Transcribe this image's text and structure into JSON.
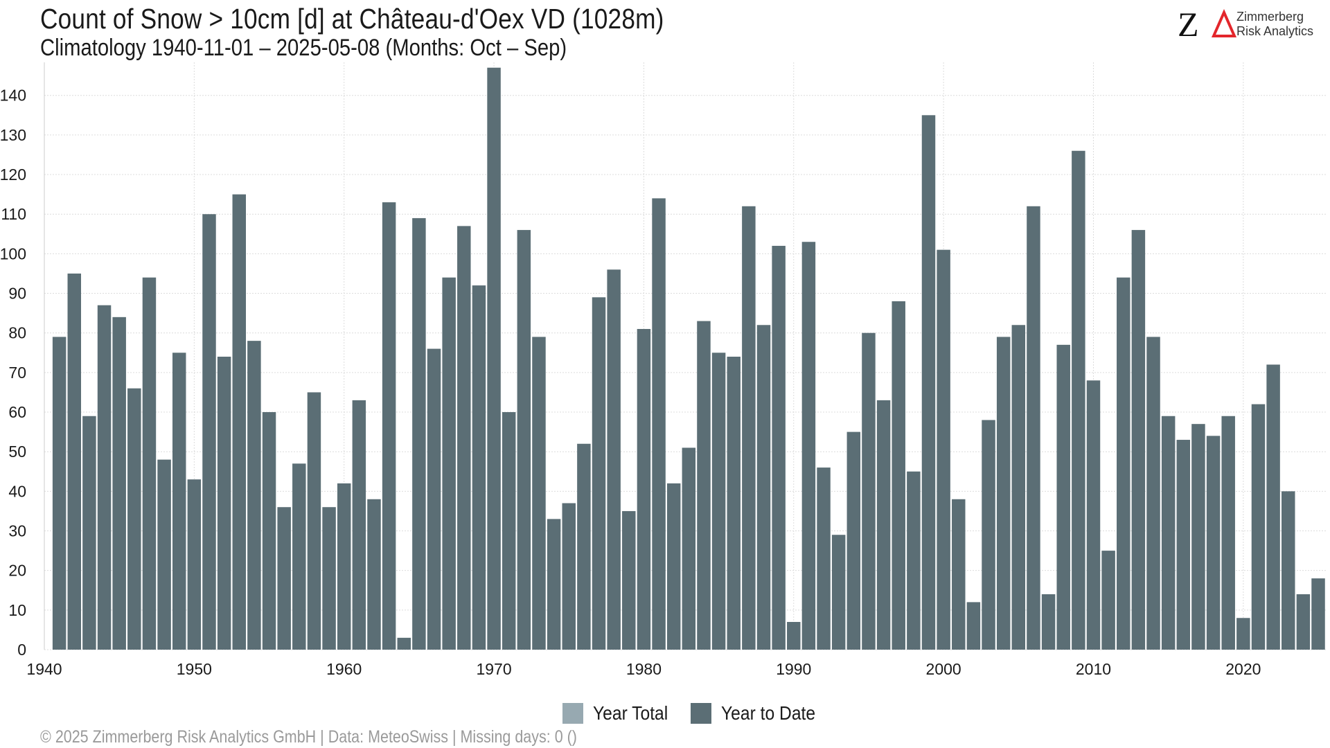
{
  "title": "Count of Snow > 10cm [d] at Château-d'Oex  VD (1028m)",
  "subtitle": "Climatology 1940-11-01 – 2025-05-08 (Months: Oct – Sep)",
  "logo": {
    "letters": "ZΔ",
    "line1": "Zimmerberg",
    "line2": "Risk Analytics",
    "accent_color": "#e3262b"
  },
  "footer": "©  2025 Zimmerberg Risk Analytics GmbH | Data: MeteoSwiss | Missing days: 0 ()",
  "legend": [
    {
      "label": "Year Total",
      "color": "#97a9b1"
    },
    {
      "label": "Year to Date",
      "color": "#5b6e75"
    }
  ],
  "chart_data": {
    "type": "bar",
    "bar_color": "#5b6e75",
    "grid": true,
    "legend_position": "bottom",
    "xlim": [
      1940,
      2025.6
    ],
    "ylim": [
      0,
      148
    ],
    "x_ticks": [
      1940,
      1950,
      1960,
      1970,
      1980,
      1990,
      2000,
      2010,
      2020
    ],
    "y_ticks": [
      0,
      10,
      20,
      30,
      40,
      50,
      60,
      70,
      80,
      90,
      100,
      110,
      120,
      130,
      140
    ],
    "x": [
      1941,
      1942,
      1943,
      1944,
      1945,
      1946,
      1947,
      1948,
      1949,
      1950,
      1951,
      1952,
      1953,
      1954,
      1955,
      1956,
      1957,
      1958,
      1959,
      1960,
      1961,
      1962,
      1963,
      1964,
      1965,
      1966,
      1967,
      1968,
      1969,
      1970,
      1971,
      1972,
      1973,
      1974,
      1975,
      1976,
      1977,
      1978,
      1979,
      1980,
      1981,
      1982,
      1983,
      1984,
      1985,
      1986,
      1987,
      1988,
      1989,
      1990,
      1991,
      1992,
      1993,
      1994,
      1995,
      1996,
      1997,
      1998,
      1999,
      2000,
      2001,
      2002,
      2003,
      2004,
      2005,
      2006,
      2007,
      2008,
      2009,
      2010,
      2011,
      2012,
      2013,
      2014,
      2015,
      2016,
      2017,
      2018,
      2019,
      2020,
      2021,
      2022,
      2023,
      2024,
      2025
    ],
    "series": [
      {
        "name": "Year to Date",
        "values": [
          79,
          95,
          59,
          87,
          84,
          66,
          94,
          48,
          75,
          43,
          110,
          74,
          115,
          78,
          60,
          36,
          47,
          65,
          36,
          42,
          63,
          38,
          113,
          3,
          109,
          76,
          94,
          107,
          92,
          147,
          60,
          106,
          79,
          33,
          37,
          52,
          89,
          96,
          35,
          81,
          114,
          42,
          51,
          83,
          75,
          74,
          112,
          82,
          102,
          7,
          103,
          46,
          29,
          55,
          80,
          63,
          88,
          45,
          135,
          101,
          38,
          12,
          58,
          79,
          82,
          112,
          14,
          77,
          126,
          68,
          25,
          94,
          106,
          79,
          59,
          53,
          57,
          54,
          59,
          8,
          62,
          72,
          40,
          14,
          18
        ]
      }
    ]
  }
}
